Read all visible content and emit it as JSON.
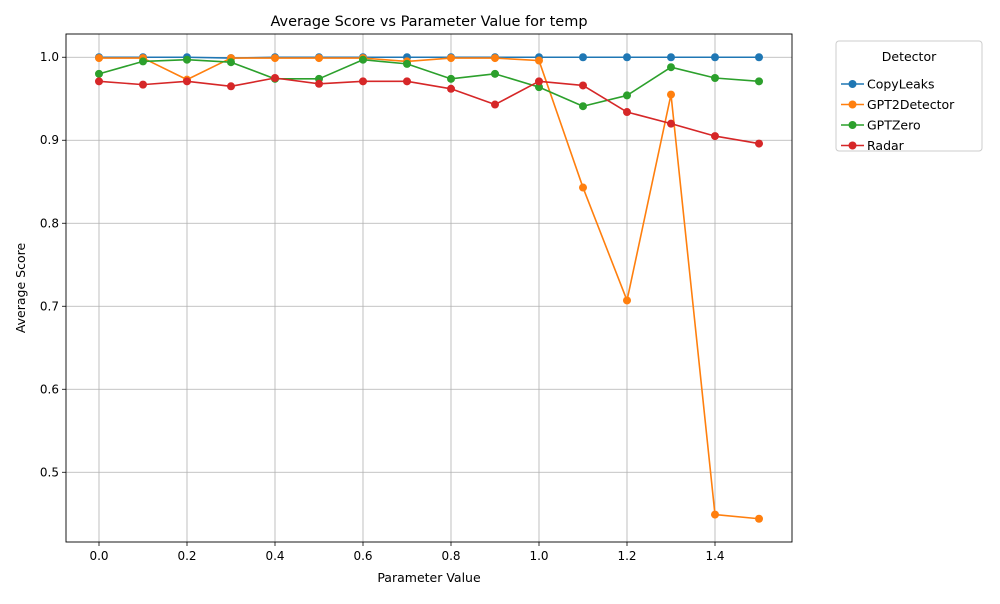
{
  "chart_data": {
    "type": "line",
    "title": "Average Score vs Parameter Value for temp",
    "xlabel": "Parameter Value",
    "ylabel": "Average Score",
    "xlim": [
      -0.075,
      1.575
    ],
    "ylim": [
      0.416,
      1.028
    ],
    "xticks": [
      0.0,
      0.2,
      0.4,
      0.6,
      0.8,
      1.0,
      1.2,
      1.4
    ],
    "xtick_labels": [
      "0.0",
      "0.2",
      "0.4",
      "0.6",
      "0.8",
      "1.0",
      "1.2",
      "1.4"
    ],
    "yticks": [
      0.5,
      0.6,
      0.7,
      0.8,
      0.9,
      1.0
    ],
    "ytick_labels": [
      "0.5",
      "0.6",
      "0.7",
      "0.8",
      "0.9",
      "1.0"
    ],
    "grid": true,
    "legend": {
      "title": "Detector",
      "placement": "outside-top-right"
    },
    "x": [
      0.0,
      0.1,
      0.2,
      0.3,
      0.4,
      0.5,
      0.6,
      0.7,
      0.8,
      0.9,
      1.0,
      1.1,
      1.2,
      1.3,
      1.4,
      1.5
    ],
    "series": [
      {
        "name": "CopyLeaks",
        "color": "#1f77b4",
        "values": [
          1.0,
          1.0,
          1.0,
          0.999,
          1.0,
          1.0,
          1.0,
          1.0,
          1.0,
          1.0,
          1.0,
          1.0,
          1.0,
          1.0,
          1.0,
          1.0
        ]
      },
      {
        "name": "GPT2Detector",
        "color": "#ff7f0e",
        "values": [
          0.999,
          0.999,
          0.973,
          0.999,
          0.999,
          0.999,
          0.999,
          0.995,
          0.999,
          0.999,
          0.996,
          0.843,
          0.707,
          0.955,
          0.449,
          0.444
        ]
      },
      {
        "name": "GPTZero",
        "color": "#2ca02c",
        "values": [
          0.98,
          0.995,
          0.997,
          0.994,
          0.974,
          0.974,
          0.997,
          0.992,
          0.974,
          0.98,
          0.964,
          0.941,
          0.954,
          0.988,
          0.975,
          0.971
        ]
      },
      {
        "name": "Radar",
        "color": "#d62728",
        "values": [
          0.971,
          0.967,
          0.971,
          0.965,
          0.975,
          0.968,
          0.971,
          0.971,
          0.962,
          0.943,
          0.971,
          0.966,
          0.934,
          0.92,
          0.905,
          0.896
        ]
      }
    ]
  }
}
